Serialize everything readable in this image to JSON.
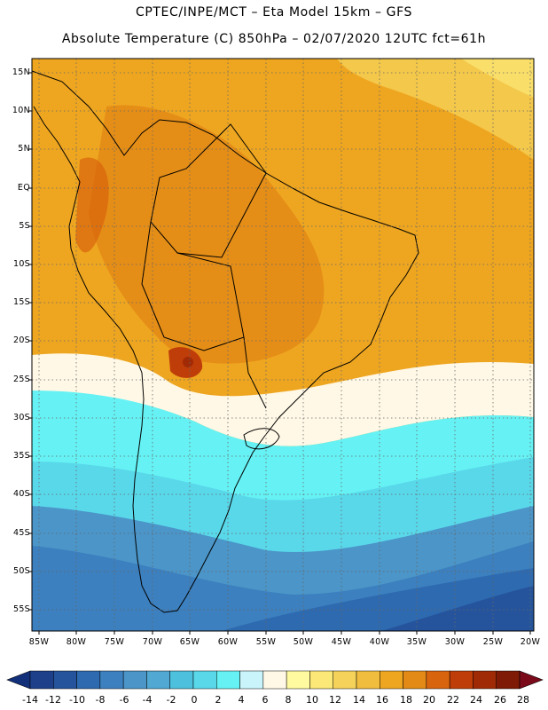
{
  "header": {
    "line1": "CPTEC/INPE/MCT –  Eta Model 15km – GFS",
    "line2": "Absolute Temperature (C) 850hPa – 02/07/2020 12UTC fct=61h"
  },
  "map": {
    "lat_labels": [
      "15N",
      "10N",
      "5N",
      "EQ",
      "5S",
      "10S",
      "15S",
      "20S",
      "25S",
      "30S",
      "35S",
      "40S",
      "45S",
      "50S",
      "55S"
    ],
    "lon_labels": [
      "85W",
      "80W",
      "75W",
      "70W",
      "65W",
      "60W",
      "55W",
      "50W",
      "45W",
      "40W",
      "35W",
      "30W",
      "25W",
      "20W"
    ]
  },
  "colorbar": {
    "labels": [
      "-14",
      "-12",
      "-10",
      "-8",
      "-6",
      "-4",
      "-2",
      "0",
      "2",
      "4",
      "6",
      "8",
      "10",
      "12",
      "14",
      "16",
      "18",
      "20",
      "22",
      "24",
      "26",
      "28"
    ],
    "colors": [
      "#1e3f8a",
      "#25549c",
      "#2e6ab0",
      "#3c80bf",
      "#4b95c8",
      "#50a8d3",
      "#4cc0dc",
      "#59d8ea",
      "#66f2f4",
      "#c9f4fb",
      "#fff8e6",
      "#fffaa0",
      "#fbe877",
      "#f5d35a",
      "#f1bd3e",
      "#eea620",
      "#e38a16",
      "#d8640d",
      "#bf3d08",
      "#a12a06",
      "#7e1a05"
    ],
    "min_color": "#12307a",
    "max_color": "#7a0a1a"
  }
}
